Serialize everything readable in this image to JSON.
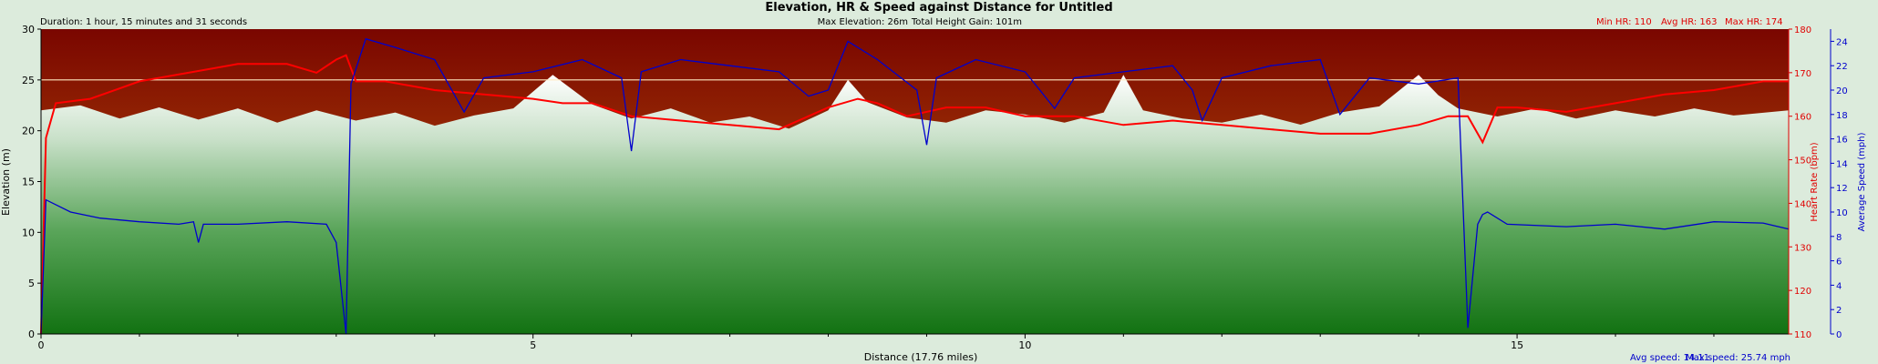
{
  "chart_data": {
    "type": "line",
    "title": "Elevation, HR & Speed against Distance for Untitled",
    "duration_text": "Duration: 1 hour, 15 minutes and 31 seconds",
    "max_elevation_text": "Max Elevation: 26m",
    "total_height_gain_text": "Total Height Gain: 101m",
    "hr_summary": {
      "min": "Min HR: 110",
      "avg": "Avg HR: 163",
      "max": "Max HR: 174"
    },
    "speed_summary": {
      "avg": "Avg speed: 14.11",
      "max": "Max speed: 25.74 mph"
    },
    "xlabel": "Distance (17.76 miles)",
    "ylabel_left": "Elevation (m)",
    "ylabel_hr": "Heart Rate (bpm)",
    "ylabel_speed": "Average Speed (mph)",
    "xlim": [
      0,
      17.76
    ],
    "ylim_elevation": [
      0,
      30
    ],
    "ylim_hr": [
      110,
      180
    ],
    "ylim_speed": [
      0,
      25
    ],
    "x_ticks": [
      "0",
      "5",
      "10",
      "15"
    ],
    "x_tick_values": [
      0,
      5,
      10,
      15
    ],
    "elevation_ticks": [
      "0",
      "5",
      "10",
      "15",
      "20",
      "25",
      "30"
    ],
    "hr_ticks": [
      "110",
      "120",
      "130",
      "140",
      "150",
      "160",
      "170",
      "180"
    ],
    "speed_ticks": [
      "0",
      "2",
      "4",
      "6",
      "8",
      "10",
      "12",
      "14",
      "16",
      "18",
      "20",
      "22",
      "24"
    ],
    "reference_line_elevation": 25,
    "series": [
      {
        "name": "Elevation",
        "axis": "elevation",
        "color": "#ffffff",
        "x": [
          0,
          0.4,
          0.8,
          1.2,
          1.6,
          2.0,
          2.4,
          2.8,
          3.2,
          3.6,
          4.0,
          4.4,
          4.8,
          5.2,
          5.6,
          6.0,
          6.4,
          6.8,
          7.2,
          7.6,
          8.0,
          8.2,
          8.4,
          8.8,
          9.2,
          9.6,
          10.0,
          10.4,
          10.8,
          11.0,
          11.2,
          11.6,
          12.0,
          12.4,
          12.8,
          13.2,
          13.6,
          14.0,
          14.2,
          14.4,
          14.8,
          15.2,
          15.6,
          16.0,
          16.4,
          16.8,
          17.2,
          17.76
        ],
        "values": [
          22,
          22.5,
          21.2,
          22.3,
          21.1,
          22.2,
          20.8,
          22.0,
          21.0,
          21.8,
          20.5,
          21.5,
          22.2,
          25.5,
          22.6,
          21.2,
          22.2,
          20.8,
          21.4,
          20.2,
          22.0,
          25.0,
          22.8,
          21.3,
          20.8,
          22.0,
          21.6,
          20.8,
          21.8,
          25.5,
          22.0,
          21.2,
          20.8,
          21.6,
          20.6,
          21.8,
          22.4,
          25.5,
          23.5,
          22.2,
          21.4,
          22.2,
          21.2,
          22.0,
          21.4,
          22.2,
          21.5,
          22.0
        ]
      },
      {
        "name": "Heart Rate",
        "axis": "hr",
        "color": "#ff0000",
        "x": [
          0,
          0.05,
          0.15,
          0.5,
          1.0,
          1.5,
          2.0,
          2.5,
          2.8,
          3.0,
          3.1,
          3.2,
          3.5,
          4.0,
          4.5,
          5.0,
          5.3,
          5.6,
          6.0,
          6.5,
          7.0,
          7.5,
          7.8,
          8.0,
          8.3,
          8.5,
          8.8,
          9.2,
          9.6,
          10.0,
          10.5,
          11.0,
          11.5,
          12.0,
          12.5,
          13.0,
          13.5,
          14.0,
          14.3,
          14.5,
          14.65,
          14.8,
          15.0,
          15.5,
          16.0,
          16.5,
          17.0,
          17.5,
          17.76
        ],
        "values": [
          110,
          155,
          163,
          164,
          168,
          170,
          172,
          172,
          170,
          173,
          174,
          168,
          168,
          166,
          165,
          164,
          163,
          163,
          160,
          159,
          158,
          157,
          160,
          162,
          164,
          163,
          160,
          162,
          162,
          160,
          160,
          158,
          159,
          158,
          157,
          156,
          156,
          158,
          160,
          160,
          154,
          162,
          162,
          161,
          163,
          165,
          166,
          168,
          168
        ]
      },
      {
        "name": "Average Speed",
        "axis": "speed",
        "color": "#0000cc",
        "x": [
          0,
          0.05,
          0.3,
          0.6,
          1.0,
          1.4,
          1.55,
          1.6,
          1.65,
          2.0,
          2.5,
          2.9,
          3.0,
          3.1,
          3.15,
          3.3,
          3.6,
          4.0,
          4.3,
          4.5,
          5.0,
          5.5,
          5.9,
          6.0,
          6.1,
          6.5,
          7.0,
          7.5,
          7.8,
          8.0,
          8.2,
          8.5,
          8.9,
          9.0,
          9.1,
          9.5,
          10.0,
          10.3,
          10.5,
          11.0,
          11.5,
          11.7,
          11.8,
          12.0,
          12.5,
          13.0,
          13.2,
          13.5,
          14.0,
          14.4,
          14.5,
          14.6,
          14.65,
          14.7,
          14.9,
          15.5,
          16.0,
          16.5,
          17.0,
          17.5,
          17.76
        ],
        "values": [
          0,
          11,
          10,
          9.5,
          9.2,
          9.0,
          9.2,
          7.5,
          9.0,
          9.0,
          9.2,
          9.0,
          7.5,
          0,
          20.5,
          24.2,
          23.5,
          22.5,
          18.2,
          21.0,
          21.5,
          22.5,
          21.0,
          15.0,
          21.5,
          22.5,
          22.0,
          21.5,
          19.5,
          20.0,
          24.0,
          22.5,
          20.0,
          15.5,
          21.0,
          22.5,
          21.5,
          18.5,
          21.0,
          21.5,
          22.0,
          20.0,
          17.5,
          21.0,
          22.0,
          22.5,
          18.0,
          21.0,
          20.5,
          21.0,
          0.5,
          9.0,
          9.8,
          10.0,
          9.0,
          8.8,
          9.0,
          8.6,
          9.2,
          9.1,
          8.6
        ]
      }
    ]
  }
}
